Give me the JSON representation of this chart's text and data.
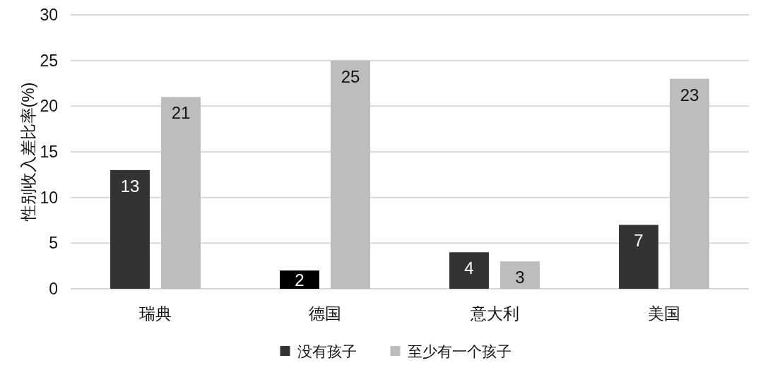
{
  "chart_data": {
    "type": "bar",
    "categories": [
      "瑞典",
      "德国",
      "意大利",
      "美国"
    ],
    "ylabel": "性别收入差比率(%)",
    "series": [
      {
        "name": "没有孩子",
        "color": "#333333",
        "colors": [
          "#333333",
          "#000000",
          "#333333",
          "#333333"
        ],
        "values": [
          13,
          2,
          4,
          7
        ]
      },
      {
        "name": "至少有一个孩子",
        "color": "#bdbdbd",
        "values": [
          21,
          25,
          3,
          23
        ]
      }
    ],
    "ylim": [
      0,
      30
    ],
    "yticks": [
      0,
      5,
      10,
      15,
      20,
      25,
      30
    ],
    "grid": "y",
    "legend": "bottom",
    "data_labels": true
  }
}
